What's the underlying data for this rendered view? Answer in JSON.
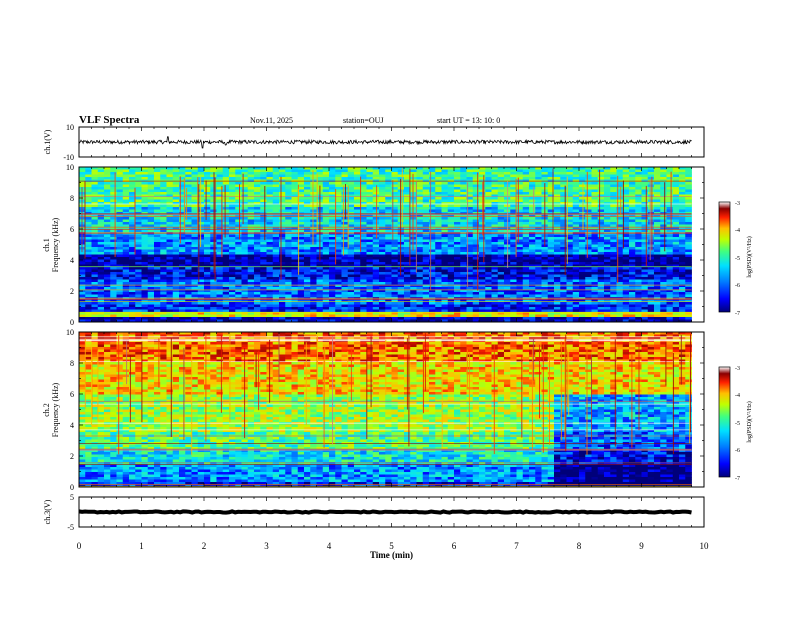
{
  "header": {
    "title": "VLF Spectra",
    "date": "Nov.11, 2025",
    "station": "station=OUJ",
    "start_ut": "start  UT  =   13: 10: 0"
  },
  "chart_data": [
    {
      "type": "line",
      "name": "ch1-waveform",
      "ylabel": "ch.1(V)",
      "ylim": [
        -10,
        10
      ],
      "y_tick_labels": [
        "10",
        "-10"
      ],
      "baseline_value": 0,
      "noise_amplitude": 1.2,
      "spikes": [
        {
          "t": 1.42,
          "v": 3.5
        },
        {
          "t": 1.98,
          "v": -4.0
        },
        {
          "t": 2.35,
          "v": -2.0
        }
      ]
    },
    {
      "type": "heatmap",
      "name": "ch1-spectrogram",
      "ylabel": "Frequency (kHz)",
      "channel_label": "ch.1",
      "ylim": [
        0,
        10
      ],
      "y_tick_labels": [
        "0",
        "2",
        "4",
        "6",
        "8",
        "10"
      ],
      "xlim": [
        0,
        10
      ],
      "data_end_min": 9.8,
      "colorbar": {
        "label": "log(PSD)(V²/Hz)",
        "range": [
          -7,
          -3
        ],
        "tick_labels": [
          "-3",
          "-4",
          "-5",
          "-6",
          "-7"
        ]
      },
      "mean_level_by_band": [
        {
          "f": [
            0.0,
            0.3
          ],
          "level": -6.8
        },
        {
          "f": [
            0.3,
            0.6
          ],
          "level": -4.6
        },
        {
          "f": [
            0.6,
            1.2
          ],
          "level": -6.4
        },
        {
          "f": [
            1.2,
            2.8
          ],
          "level": -6.2
        },
        {
          "f": [
            2.8,
            3.6
          ],
          "level": -6.6
        },
        {
          "f": [
            3.6,
            4.4
          ],
          "level": -6.9
        },
        {
          "f": [
            4.4,
            5.8
          ],
          "level": -6.0
        },
        {
          "f": [
            5.8,
            7.4
          ],
          "level": -5.7
        },
        {
          "f": [
            7.4,
            10.0
          ],
          "level": -5.3
        }
      ]
    },
    {
      "type": "heatmap",
      "name": "ch2-spectrogram",
      "ylabel": "Frequency (kHz)",
      "channel_label": "ch.2",
      "ylim": [
        0,
        10
      ],
      "y_tick_labels": [
        "0",
        "2",
        "4",
        "6",
        "8",
        "10"
      ],
      "xlim": [
        0,
        10
      ],
      "data_end_min": 9.8,
      "colorbar": {
        "label": "log(PSD)(V²/Hz)",
        "range": [
          -7,
          -3
        ],
        "tick_labels": [
          "-3",
          "-4",
          "-5",
          "-6",
          "-7"
        ]
      },
      "mean_level_by_band": [
        {
          "f": [
            0.0,
            0.4
          ],
          "level": -6.5
        },
        {
          "f": [
            0.4,
            1.5
          ],
          "level": -6.0
        },
        {
          "f": [
            1.5,
            2.5
          ],
          "level": -5.6
        },
        {
          "f": [
            2.5,
            3.5
          ],
          "level": -5.2
        },
        {
          "f": [
            3.5,
            6.0
          ],
          "level": -4.9
        },
        {
          "f": [
            6.0,
            8.0
          ],
          "level": -4.5
        },
        {
          "f": [
            8.0,
            10.0
          ],
          "level": -4.1
        }
      ],
      "dim_region": {
        "t_from": 7.6,
        "f_below": 6.0,
        "level_shift": -1.0
      }
    },
    {
      "type": "line",
      "name": "ch3-waveform",
      "ylabel": "ch.3(V)",
      "ylim": [
        -5,
        5
      ],
      "y_tick_labels": [
        "5",
        "-5"
      ],
      "baseline_value": 0,
      "noise_amplitude": 0.2
    }
  ],
  "x_axis": {
    "label": "Time  (min)",
    "range": [
      0,
      10
    ],
    "tick_labels": [
      "0",
      "1",
      "2",
      "3",
      "4",
      "5",
      "6",
      "7",
      "8",
      "9",
      "10"
    ]
  },
  "colors": {
    "frame": "#000000",
    "trace": "#000000",
    "colormap": [
      "#00007a",
      "#0000ff",
      "#0080ff",
      "#00e0ff",
      "#40ff80",
      "#c0ff00",
      "#ffc000",
      "#ff2000",
      "#8a0000",
      "#ffffff"
    ]
  }
}
